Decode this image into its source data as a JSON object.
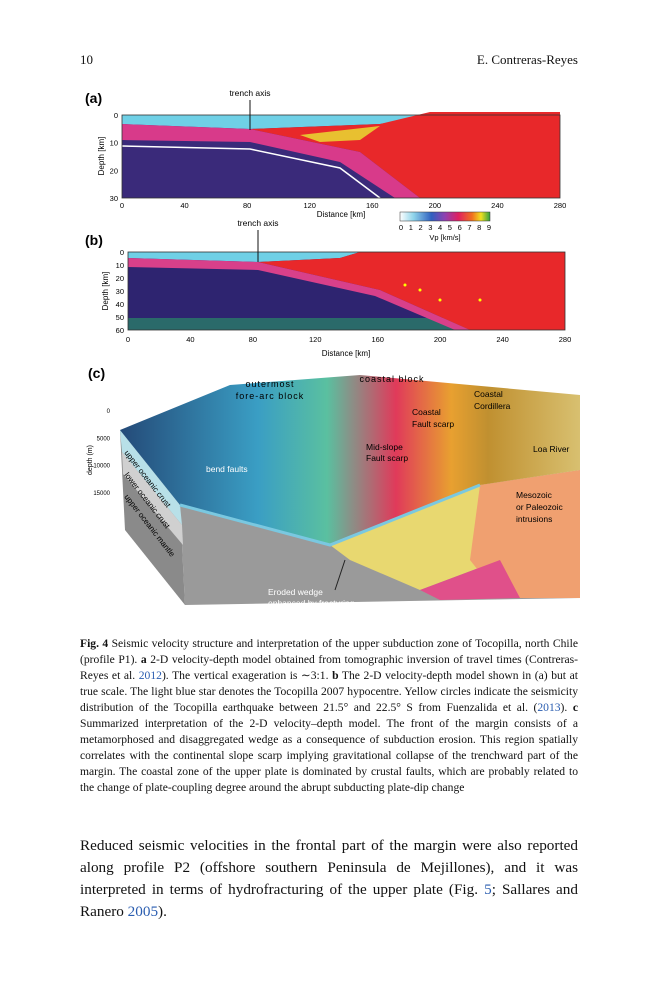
{
  "header": {
    "page_number": "10",
    "author": "E. Contreras-Reyes"
  },
  "figure": {
    "panel_a": {
      "label": "(a)",
      "annotation": "trench axis",
      "y_axis_label": "Depth [km]",
      "x_axis_label": "Distance [km]",
      "y_ticks": [
        "0",
        "10",
        "20",
        "30"
      ],
      "x_ticks": [
        "0",
        "40",
        "80",
        "120",
        "160",
        "200",
        "240",
        "280"
      ],
      "colorbar_ticks": [
        "0",
        "1",
        "2",
        "3",
        "4",
        "5",
        "6",
        "7",
        "8",
        "9"
      ],
      "colorbar_label": "Vp [km/s]"
    },
    "panel_b": {
      "label": "(b)",
      "annotation": "trench axis",
      "y_axis_label": "Depth [km]",
      "x_axis_label": "Distance [km]",
      "y_ticks": [
        "0",
        "10",
        "20",
        "30",
        "40",
        "50",
        "60"
      ],
      "x_ticks": [
        "0",
        "40",
        "80",
        "120",
        "160",
        "200",
        "240",
        "280"
      ]
    },
    "panel_c": {
      "label": "(c)",
      "y_axis_label": "depth (m)",
      "y_ticks": [
        "0",
        "5000",
        "10000",
        "15000"
      ],
      "outermost": [
        "outermost",
        "fore-arc block"
      ],
      "coastal_block": "coastal block",
      "coastal_cordillera": [
        "Coastal",
        "Cordillera"
      ],
      "coastal_fault": [
        "Coastal",
        "Fault scarp"
      ],
      "loa_river": "Loa River",
      "mid_slope": [
        "Mid-slope",
        "Fault scarp"
      ],
      "bend_faults": "bend faults",
      "upper_crust": "upper oceanic crust",
      "lower_crust": "lower oceanic crust",
      "upper_mantle": "upper oceanic mantle",
      "intrusions": [
        "Mesozoic",
        "or Paleozoic",
        "intrusions"
      ],
      "eroded_wedge": [
        "Eroded wedge",
        "enhanced by fracturing"
      ]
    }
  },
  "caption": [
    "Fig. 4",
    " Seismic velocity structure and interpretation of the upper subduction zone of Tocopilla, north Chile (profile P1). ",
    "a",
    " 2-D velocity-depth model obtained from tomographic inversion of travel times (Contreras-Reyes et al. ",
    "2012",
    "). The vertical exageration is ∼3:1. ",
    "b",
    " The 2-D velocity-depth model shown in (a) but at true scale. The light blue star denotes the Tocopilla 2007 hypocentre. Yellow circles indicate the seismicity distribution of the Tocopilla earthquake between 21.5° and 22.5° S from Fuenzalida et al. (",
    "2013",
    "). ",
    "c",
    " Summarized interpretation of the 2-D velocity–depth model. The front of the margin consists of a metamorphosed and disaggregated wedge as a consequence of subduction erosion. This region spatially correlates with the continental slope scarp implying gravitational collapse of the trenchward part of the margin. The coastal zone of the upper plate is dominated by crustal faults, which are probably related to the change of plate-coupling degree around the abrupt subducting plate-dip change"
  ],
  "body": [
    "Reduced seismic velocities in the frontal part of the margin were also reported along profile P2 (offshore southern Peninsula de Mejillones), and it was interpreted in terms of hydrofracturing of the upper plate (Fig. ",
    "5",
    "; Sallares and Ranero ",
    "2005",
    ")."
  ]
}
